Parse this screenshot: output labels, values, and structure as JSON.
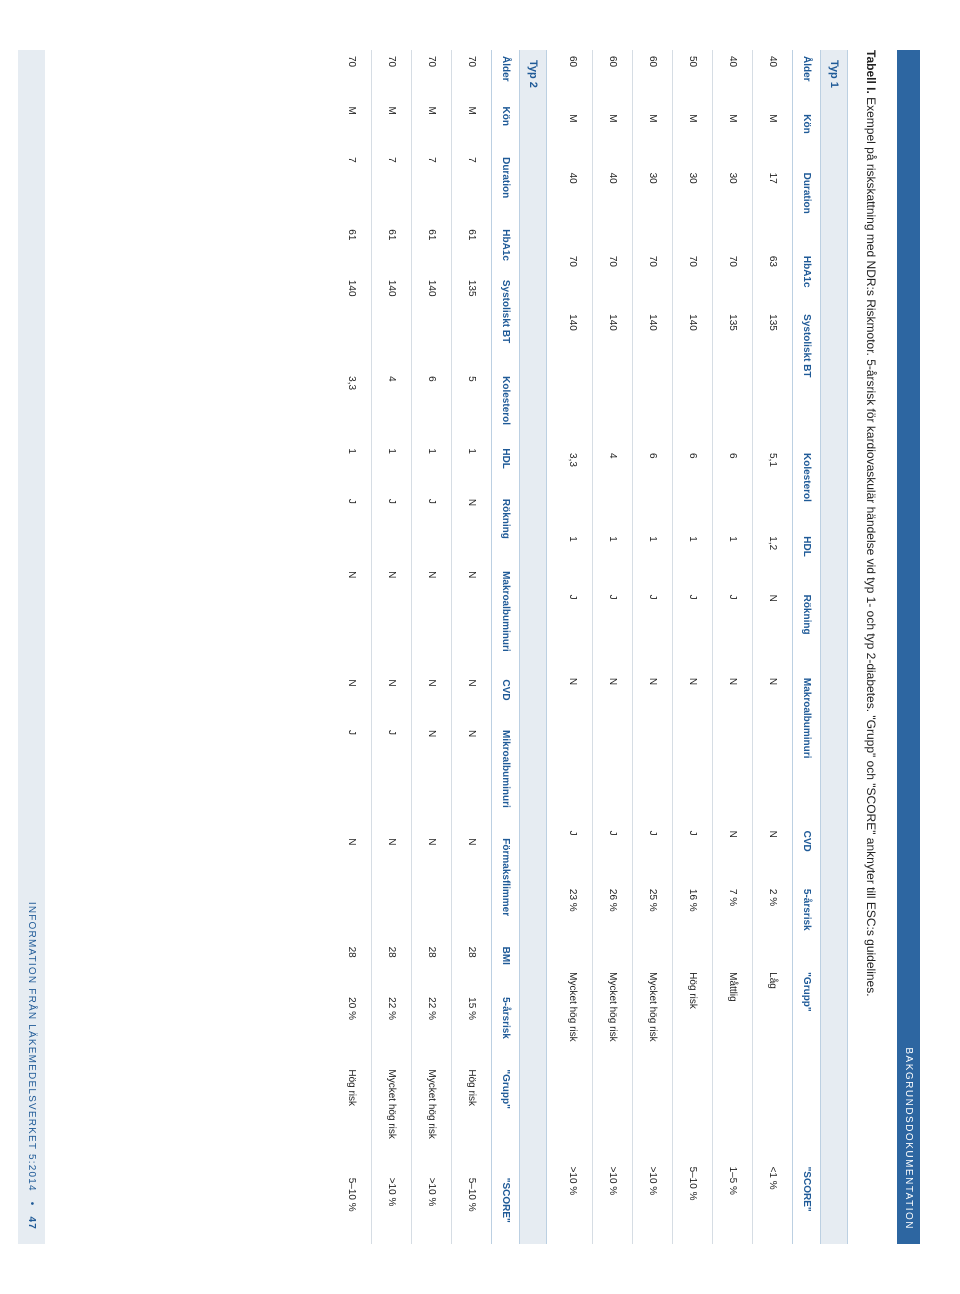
{
  "header_bar": "BAKGRUNDSDOKUMENTATION",
  "title_pre": "Tabell I.",
  "title_rest": " Exempel på riskskattning med NDR:s Riskmotor. 5-årsrisk för kardiovaskulär händelse vid typ 1- och typ 2-diabetes. \"Grupp\" och \"SCORE\" anknyter till ESC:s guidelines.",
  "typ1": {
    "label": "Typ 1",
    "columns": [
      "Ålder",
      "Kön",
      "Duration",
      "HbA1c",
      "Systoliskt BT",
      "Kolesterol",
      "HDL",
      "Rökning",
      "Makroalbuminuri",
      "CVD",
      "5-årsrisk",
      "\"Grupp\"",
      "\"SCORE\""
    ],
    "rows": [
      [
        "40",
        "M",
        "17",
        "63",
        "135",
        "5,1",
        "1,2",
        "N",
        "N",
        "N",
        "2 %",
        "Låg",
        "<1 %"
      ],
      [
        "40",
        "M",
        "30",
        "70",
        "135",
        "6",
        "1",
        "J",
        "N",
        "N",
        "7 %",
        "Måttlig",
        "1–5 %"
      ],
      [
        "50",
        "M",
        "30",
        "70",
        "140",
        "6",
        "1",
        "J",
        "N",
        "J",
        "16 %",
        "Hög risk",
        "5–10 %"
      ],
      [
        "60",
        "M",
        "30",
        "70",
        "140",
        "6",
        "1",
        "J",
        "N",
        "J",
        "25 %",
        "Mycket hög risk",
        ">10 %"
      ],
      [
        "60",
        "M",
        "40",
        "70",
        "140",
        "4",
        "1",
        "J",
        "N",
        "J",
        "26 %",
        "Mycket hög risk",
        ">10 %"
      ],
      [
        "60",
        "M",
        "40",
        "70",
        "140",
        "3,3",
        "1",
        "J",
        "N",
        "J",
        "23 %",
        "Mycket hög risk",
        ">10 %"
      ]
    ]
  },
  "typ2": {
    "label": "Typ 2",
    "columns": [
      "Ålder",
      "Kön",
      "Duration",
      "HbA1c",
      "Systoliskt BT",
      "Kolesterol",
      "HDL",
      "Rökning",
      "Makroalbuminuri",
      "CVD",
      "Mikroalbuminuri",
      "Förmaksflimmer",
      "BMI",
      "5-årsrisk",
      "\"Grupp\"",
      "\"SCORE\""
    ],
    "rows": [
      [
        "70",
        "M",
        "7",
        "61",
        "135",
        "5",
        "1",
        "N",
        "N",
        "N",
        "N",
        "N",
        "28",
        "15 %",
        "Hög risk",
        "5–10 %"
      ],
      [
        "70",
        "M",
        "7",
        "61",
        "140",
        "6",
        "1",
        "J",
        "N",
        "N",
        "N",
        "N",
        "28",
        "22 %",
        "Mycket hög risk",
        ">10 %"
      ],
      [
        "70",
        "M",
        "7",
        "61",
        "140",
        "4",
        "1",
        "J",
        "N",
        "N",
        "J",
        "N",
        "28",
        "22 %",
        "Mycket hög risk",
        ">10 %"
      ],
      [
        "70",
        "M",
        "7",
        "61",
        "140",
        "3,3",
        "1",
        "J",
        "N",
        "N",
        "J",
        "N",
        "28",
        "20 %",
        "Hög risk",
        "5–10 %"
      ]
    ]
  },
  "footer": {
    "text": "INFORMATION FRÅN LÄKEMEDELSVERKET 5:2014",
    "bullet": "•",
    "page": "47"
  },
  "colors": {
    "header_bg": "#2d66a1",
    "header_text": "#ffffff",
    "section_bg": "#e6ecf2",
    "section_text": "#1f5a97",
    "row_border": "#d6dde4",
    "body_text": "#222222"
  }
}
